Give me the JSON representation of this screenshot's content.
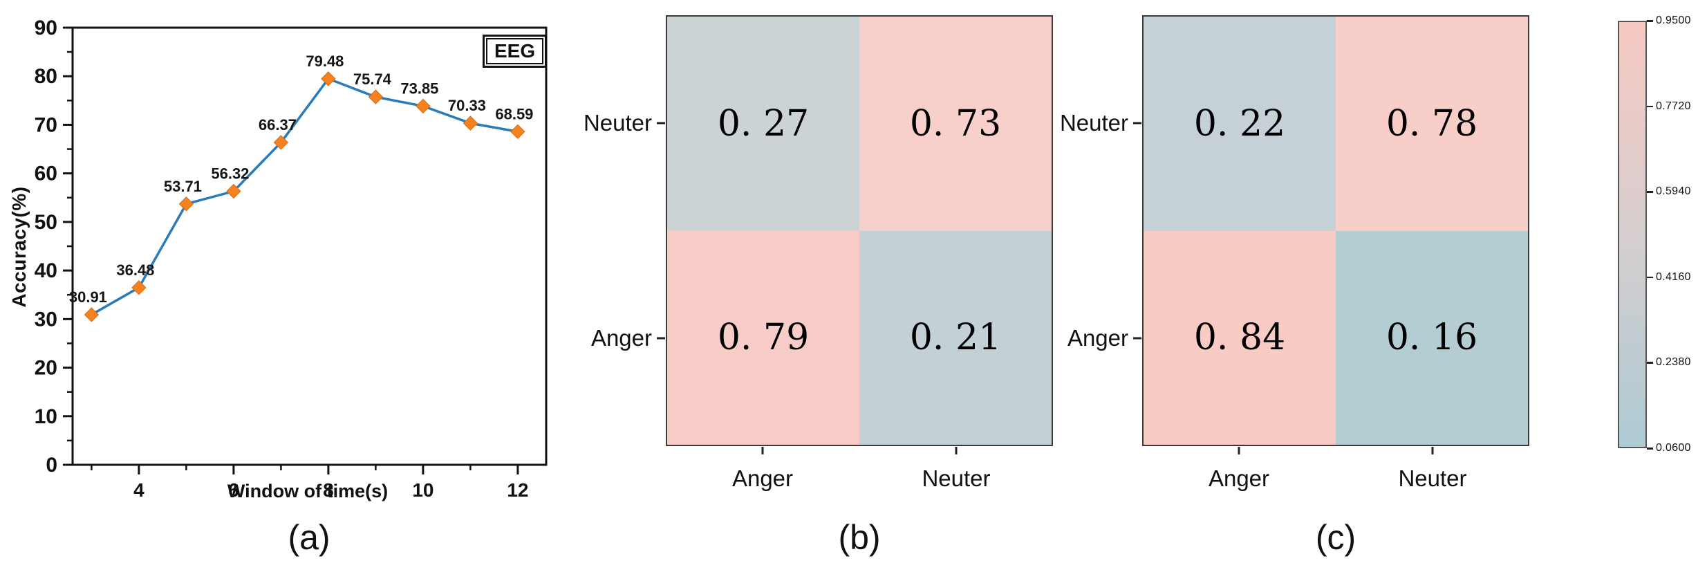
{
  "figure": {
    "background": "#ffffff"
  },
  "chart_data": [
    {
      "id": "a",
      "type": "line",
      "caption": "(a)",
      "xlabel": "Window of time(s)",
      "ylabel": "Accuracy(%)",
      "legend": "EEG",
      "x": [
        3,
        4,
        5,
        6,
        7,
        8,
        9,
        10,
        11,
        12
      ],
      "y": [
        30.91,
        36.48,
        53.71,
        56.32,
        66.37,
        79.48,
        75.74,
        73.85,
        70.33,
        68.59
      ],
      "point_labels": [
        "30.91",
        "36.48",
        "53.71",
        "56.32",
        "66.37",
        "79.48",
        "75.74",
        "73.85",
        "70.33",
        "68.59"
      ],
      "xlim": [
        2.6,
        12.6
      ],
      "ylim": [
        0,
        90
      ],
      "x_major_ticks": [
        4,
        6,
        8,
        10,
        12
      ],
      "x_minor_ticks": [
        3,
        5,
        7,
        9,
        11
      ],
      "y_major_ticks": [
        0,
        10,
        20,
        30,
        40,
        50,
        60,
        70,
        80,
        90
      ],
      "y_minor_ticks": [
        5,
        15,
        25,
        35,
        45,
        55,
        65,
        75,
        85
      ],
      "line_color": "#2b7bb9",
      "marker_color": "#f5821f",
      "marker_edge_color": "#d86e12",
      "axis_color": "#111111",
      "grid": "off",
      "legend_position": "top-right"
    },
    {
      "id": "b",
      "type": "heatmap",
      "caption": "(b)",
      "rows": [
        "Neuter",
        "Anger"
      ],
      "cols": [
        "Anger",
        "Neuter"
      ],
      "values": [
        [
          0.27,
          0.73
        ],
        [
          0.79,
          0.21
        ]
      ],
      "cell_labels": [
        [
          "0. 27",
          "0. 73"
        ],
        [
          "0. 79",
          "0. 21"
        ]
      ],
      "cell_colors": [
        [
          "#ccd3d5",
          "#f8d0cb"
        ],
        [
          "#f8cdc7",
          "#c3d0d5"
        ]
      ]
    },
    {
      "id": "c",
      "type": "heatmap",
      "caption": "(c)",
      "rows": [
        "Neuter",
        "Anger"
      ],
      "cols": [
        "Anger",
        "Neuter"
      ],
      "values": [
        [
          0.22,
          0.78
        ],
        [
          0.84,
          0.16
        ]
      ],
      "cell_labels": [
        [
          "0. 22",
          "0. 78"
        ],
        [
          "0. 84",
          "0. 16"
        ]
      ],
      "cell_colors": [
        [
          "#c5d1d6",
          "#f8cec9"
        ],
        [
          "#f8cbc4",
          "#b4cdd3"
        ]
      ]
    }
  ],
  "colorbar": {
    "min": 0.06,
    "max": 0.95,
    "ticks": [
      "0.9500",
      "0.7720",
      "0.5940",
      "0.4160",
      "0.2380",
      "0.0600"
    ],
    "top_color": "#f7c9c2",
    "mid_color": "#d6cecf",
    "bottom_color": "#aecbd4"
  }
}
